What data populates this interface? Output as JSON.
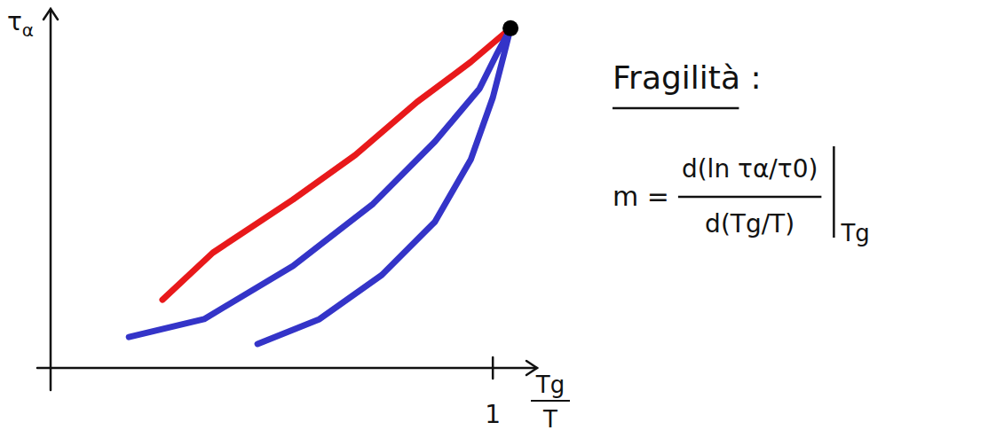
{
  "chart_data": {
    "type": "line",
    "ylabel": "τα",
    "xlabel": "Tg/T",
    "xlim": [
      0,
      1.1
    ],
    "ylim": [
      0,
      1
    ],
    "xticks": [
      1
    ],
    "yticks": [],
    "tick_labels": "x",
    "grid": false,
    "series": [
      {
        "color": "#e8191b",
        "line_style": "solid",
        "x": [
          0.253,
          0.367,
          0.548,
          0.689,
          0.829,
          0.95,
          1.04
        ],
        "values": [
          0.19,
          0.321,
          0.469,
          0.593,
          0.741,
          0.852,
          0.946
        ]
      },
      {
        "color": "#3434c8",
        "line_style": "solid",
        "x": [
          0.177,
          0.347,
          0.548,
          0.729,
          0.869,
          0.97,
          1.01,
          1.04
        ],
        "values": [
          0.086,
          0.136,
          0.284,
          0.457,
          0.63,
          0.778,
          0.877,
          0.946
        ]
      },
      {
        "color": "#3434c8",
        "line_style": "solid",
        "x": [
          0.468,
          0.608,
          0.749,
          0.869,
          0.95,
          1.0,
          1.026,
          1.04
        ],
        "values": [
          0.067,
          0.136,
          0.259,
          0.407,
          0.58,
          0.753,
          0.877,
          0.946
        ]
      },
      {
        "type": "scatter",
        "color": "#000000",
        "marker": "circle",
        "x": [
          1.04
        ],
        "values": [
          0.946
        ]
      }
    ],
    "annotations": {
      "title": "Fragilità :",
      "formula": {
        "lhs": "m =",
        "numerator": "d(ln τα/τ0)",
        "denominator": "d(Tg/T)",
        "evaluated_at": "Tg"
      }
    }
  }
}
